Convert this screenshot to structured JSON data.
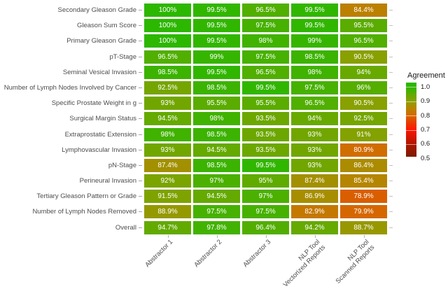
{
  "chart_data": {
    "type": "heatmap",
    "title": "",
    "value_suffix": "%",
    "columns": [
      "Abstractor 1",
      "Abstractor 2",
      "Abstractor 3",
      "NLP Tool\nVectorized Reports",
      "NLP Tool\nScanned Reports"
    ],
    "rows": [
      {
        "label": "Secondary Gleason Grade",
        "values": [
          100,
          99.5,
          96.5,
          99.5,
          84.4
        ]
      },
      {
        "label": "Gleason Sum Score",
        "values": [
          100,
          99.5,
          97.5,
          99.5,
          95.5
        ]
      },
      {
        "label": "Primary Gleason Grade",
        "values": [
          100,
          99.5,
          98,
          99,
          96.5
        ]
      },
      {
        "label": "pT-Stage",
        "values": [
          96.5,
          99,
          97.5,
          98.5,
          90.5
        ]
      },
      {
        "label": "Seminal Vesical Invasion",
        "values": [
          98.5,
          99.5,
          96.5,
          98,
          94
        ]
      },
      {
        "label": "Number of Lymph Nodes Involved by Cancer",
        "values": [
          92.5,
          98.5,
          99.5,
          97.5,
          96
        ]
      },
      {
        "label": "Specific Prostate Weight in g",
        "values": [
          93,
          95.5,
          95.5,
          96.5,
          90.5
        ]
      },
      {
        "label": "Surgical Margin Status",
        "values": [
          94.5,
          98,
          93.5,
          94,
          92.5
        ]
      },
      {
        "label": "Extraprostatic Extension",
        "values": [
          98,
          98.5,
          93.5,
          93,
          91
        ]
      },
      {
        "label": "Lymphovascular Invasion",
        "values": [
          93,
          94.5,
          93.5,
          93,
          80.9
        ]
      },
      {
        "label": "pN-Stage",
        "values": [
          87.4,
          98.5,
          99.5,
          93,
          86.4
        ]
      },
      {
        "label": "Perineural Invasion",
        "values": [
          92,
          97,
          95,
          87.4,
          85.4
        ]
      },
      {
        "label": "Tertiary Gleason Pattern or Grade",
        "values": [
          91.5,
          94.5,
          97,
          86.9,
          78.9
        ]
      },
      {
        "label": "Number of Lymph Nodes Removed",
        "values": [
          88.9,
          97.5,
          97.5,
          82.9,
          79.9
        ]
      },
      {
        "label": "Overall",
        "values": [
          94.7,
          97.8,
          96.4,
          94.2,
          88.7
        ]
      }
    ],
    "legend": {
      "title": "Agreement",
      "ticks": [
        "1.0",
        "0.9",
        "0.8",
        "0.7",
        "0.6",
        "0.5"
      ],
      "range": [
        0.5,
        1.0
      ],
      "position": "right"
    },
    "color_scale": [
      {
        "value": 1.0,
        "color": "#2cb700"
      },
      {
        "value": 0.95,
        "color": "#5fab00"
      },
      {
        "value": 0.9,
        "color": "#8c9f00"
      },
      {
        "value": 0.85,
        "color": "#b78300"
      },
      {
        "value": 0.8,
        "color": "#d56800"
      },
      {
        "value": 0.75,
        "color": "#e83a00"
      },
      {
        "value": 0.7,
        "color": "#ff1400"
      },
      {
        "value": 0.6,
        "color": "#ad1600"
      },
      {
        "value": 0.5,
        "color": "#7c1a00"
      }
    ],
    "layout_hints": {
      "grid": false,
      "cell_text_color": "#ffffff",
      "axis_text_color": "#4d4d4d"
    }
  }
}
